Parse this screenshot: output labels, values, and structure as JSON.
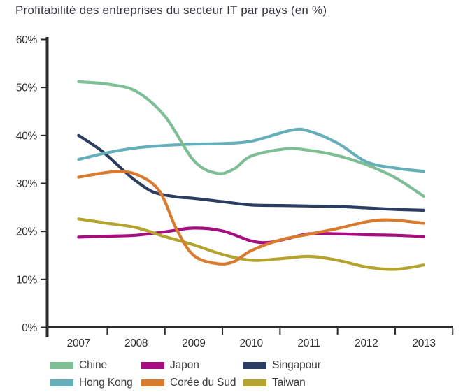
{
  "chart_data": {
    "type": "line",
    "title": "Profitabilité des entreprises du secteur IT par pays (en %)",
    "xlabel": "",
    "ylabel": "",
    "xlim": [
      2007,
      2013
    ],
    "ylim": [
      0,
      60
    ],
    "grid": false,
    "legend_position": "bottom",
    "axis_color": "#2b2b2e",
    "tick_label_color": "#2f2f33",
    "x_ticks": [
      {
        "v": 2007,
        "label": "2007"
      },
      {
        "v": 2008,
        "label": "2008"
      },
      {
        "v": 2009,
        "label": "2009"
      },
      {
        "v": 2010,
        "label": "2010"
      },
      {
        "v": 2011,
        "label": "2011"
      },
      {
        "v": 2012,
        "label": "2012"
      },
      {
        "v": 2013,
        "label": "2013"
      }
    ],
    "y_ticks": [
      {
        "v": 0,
        "label": "0%"
      },
      {
        "v": 10,
        "label": "10%"
      },
      {
        "v": 20,
        "label": "20%"
      },
      {
        "v": 30,
        "label": "30%"
      },
      {
        "v": 40,
        "label": "40%"
      },
      {
        "v": 50,
        "label": "50%"
      },
      {
        "v": 60,
        "label": "60%"
      }
    ],
    "series": [
      {
        "name": "Chine",
        "color": "#7DBE95",
        "points": [
          [
            2007,
            51.2
          ],
          [
            2007.5,
            50.7
          ],
          [
            2008,
            49.2
          ],
          [
            2008.5,
            44.0
          ],
          [
            2009,
            34.8
          ],
          [
            2009.4,
            32.1
          ],
          [
            2009.7,
            33.0
          ],
          [
            2010,
            35.7
          ],
          [
            2010.6,
            37.2
          ],
          [
            2011,
            36.9
          ],
          [
            2011.5,
            35.8
          ],
          [
            2012,
            33.9
          ],
          [
            2012.5,
            31.2
          ],
          [
            2013,
            27.3
          ]
        ]
      },
      {
        "name": "Japon",
        "color": "#A60D7E",
        "points": [
          [
            2007,
            18.8
          ],
          [
            2007.5,
            19.0
          ],
          [
            2008,
            19.2
          ],
          [
            2008.5,
            19.9
          ],
          [
            2009,
            20.7
          ],
          [
            2009.5,
            20.1
          ],
          [
            2010,
            18.0
          ],
          [
            2010.3,
            17.7
          ],
          [
            2010.6,
            18.4
          ],
          [
            2011,
            19.5
          ],
          [
            2011.5,
            19.5
          ],
          [
            2012,
            19.3
          ],
          [
            2012.5,
            19.2
          ],
          [
            2013,
            18.9
          ]
        ]
      },
      {
        "name": "Singapour",
        "color": "#2B3D60",
        "points": [
          [
            2007,
            40.0
          ],
          [
            2007.4,
            36.8
          ],
          [
            2007.8,
            32.5
          ],
          [
            2008,
            30.5
          ],
          [
            2008.3,
            28.2
          ],
          [
            2008.7,
            27.2
          ],
          [
            2009,
            26.9
          ],
          [
            2009.5,
            26.2
          ],
          [
            2010,
            25.5
          ],
          [
            2010.5,
            25.4
          ],
          [
            2011,
            25.3
          ],
          [
            2011.5,
            25.2
          ],
          [
            2012,
            24.9
          ],
          [
            2012.5,
            24.6
          ],
          [
            2013,
            24.4
          ]
        ]
      },
      {
        "name": "Hong Kong",
        "color": "#64AFBA",
        "points": [
          [
            2007,
            35.0
          ],
          [
            2007.5,
            36.4
          ],
          [
            2008,
            37.4
          ],
          [
            2008.5,
            37.9
          ],
          [
            2009,
            38.2
          ],
          [
            2009.5,
            38.3
          ],
          [
            2010,
            38.8
          ],
          [
            2010.7,
            41.1
          ],
          [
            2011,
            40.9
          ],
          [
            2011.5,
            38.4
          ],
          [
            2012,
            34.5
          ],
          [
            2012.5,
            33.2
          ],
          [
            2013,
            32.5
          ]
        ]
      },
      {
        "name": "Corée du Sud",
        "color": "#D97B2E",
        "points": [
          [
            2007,
            31.3
          ],
          [
            2007.6,
            32.4
          ],
          [
            2008,
            31.9
          ],
          [
            2008.4,
            28.5
          ],
          [
            2008.7,
            20.5
          ],
          [
            2009,
            15.0
          ],
          [
            2009.4,
            13.3
          ],
          [
            2009.7,
            13.7
          ],
          [
            2010,
            16.0
          ],
          [
            2010.5,
            18.2
          ],
          [
            2011,
            19.4
          ],
          [
            2011.5,
            20.6
          ],
          [
            2012,
            22.0
          ],
          [
            2012.4,
            22.4
          ],
          [
            2013,
            21.7
          ]
        ]
      },
      {
        "name": "Taiwan",
        "color": "#B5A32F",
        "points": [
          [
            2007,
            22.6
          ],
          [
            2007.5,
            21.7
          ],
          [
            2008,
            20.8
          ],
          [
            2008.5,
            18.9
          ],
          [
            2009,
            17.2
          ],
          [
            2009.5,
            15.2
          ],
          [
            2010,
            14.0
          ],
          [
            2010.5,
            14.3
          ],
          [
            2011,
            14.8
          ],
          [
            2011.5,
            14.0
          ],
          [
            2012,
            12.6
          ],
          [
            2012.5,
            12.1
          ],
          [
            2013,
            13.0
          ]
        ]
      }
    ],
    "legend_order": [
      "Chine",
      "Japon",
      "Singapour",
      "Hong Kong",
      "Corée du Sud",
      "Taiwan"
    ],
    "draw_order": [
      "Singapour",
      "Japon",
      "Taiwan",
      "Corée du Sud",
      "Hong Kong",
      "Chine"
    ]
  }
}
